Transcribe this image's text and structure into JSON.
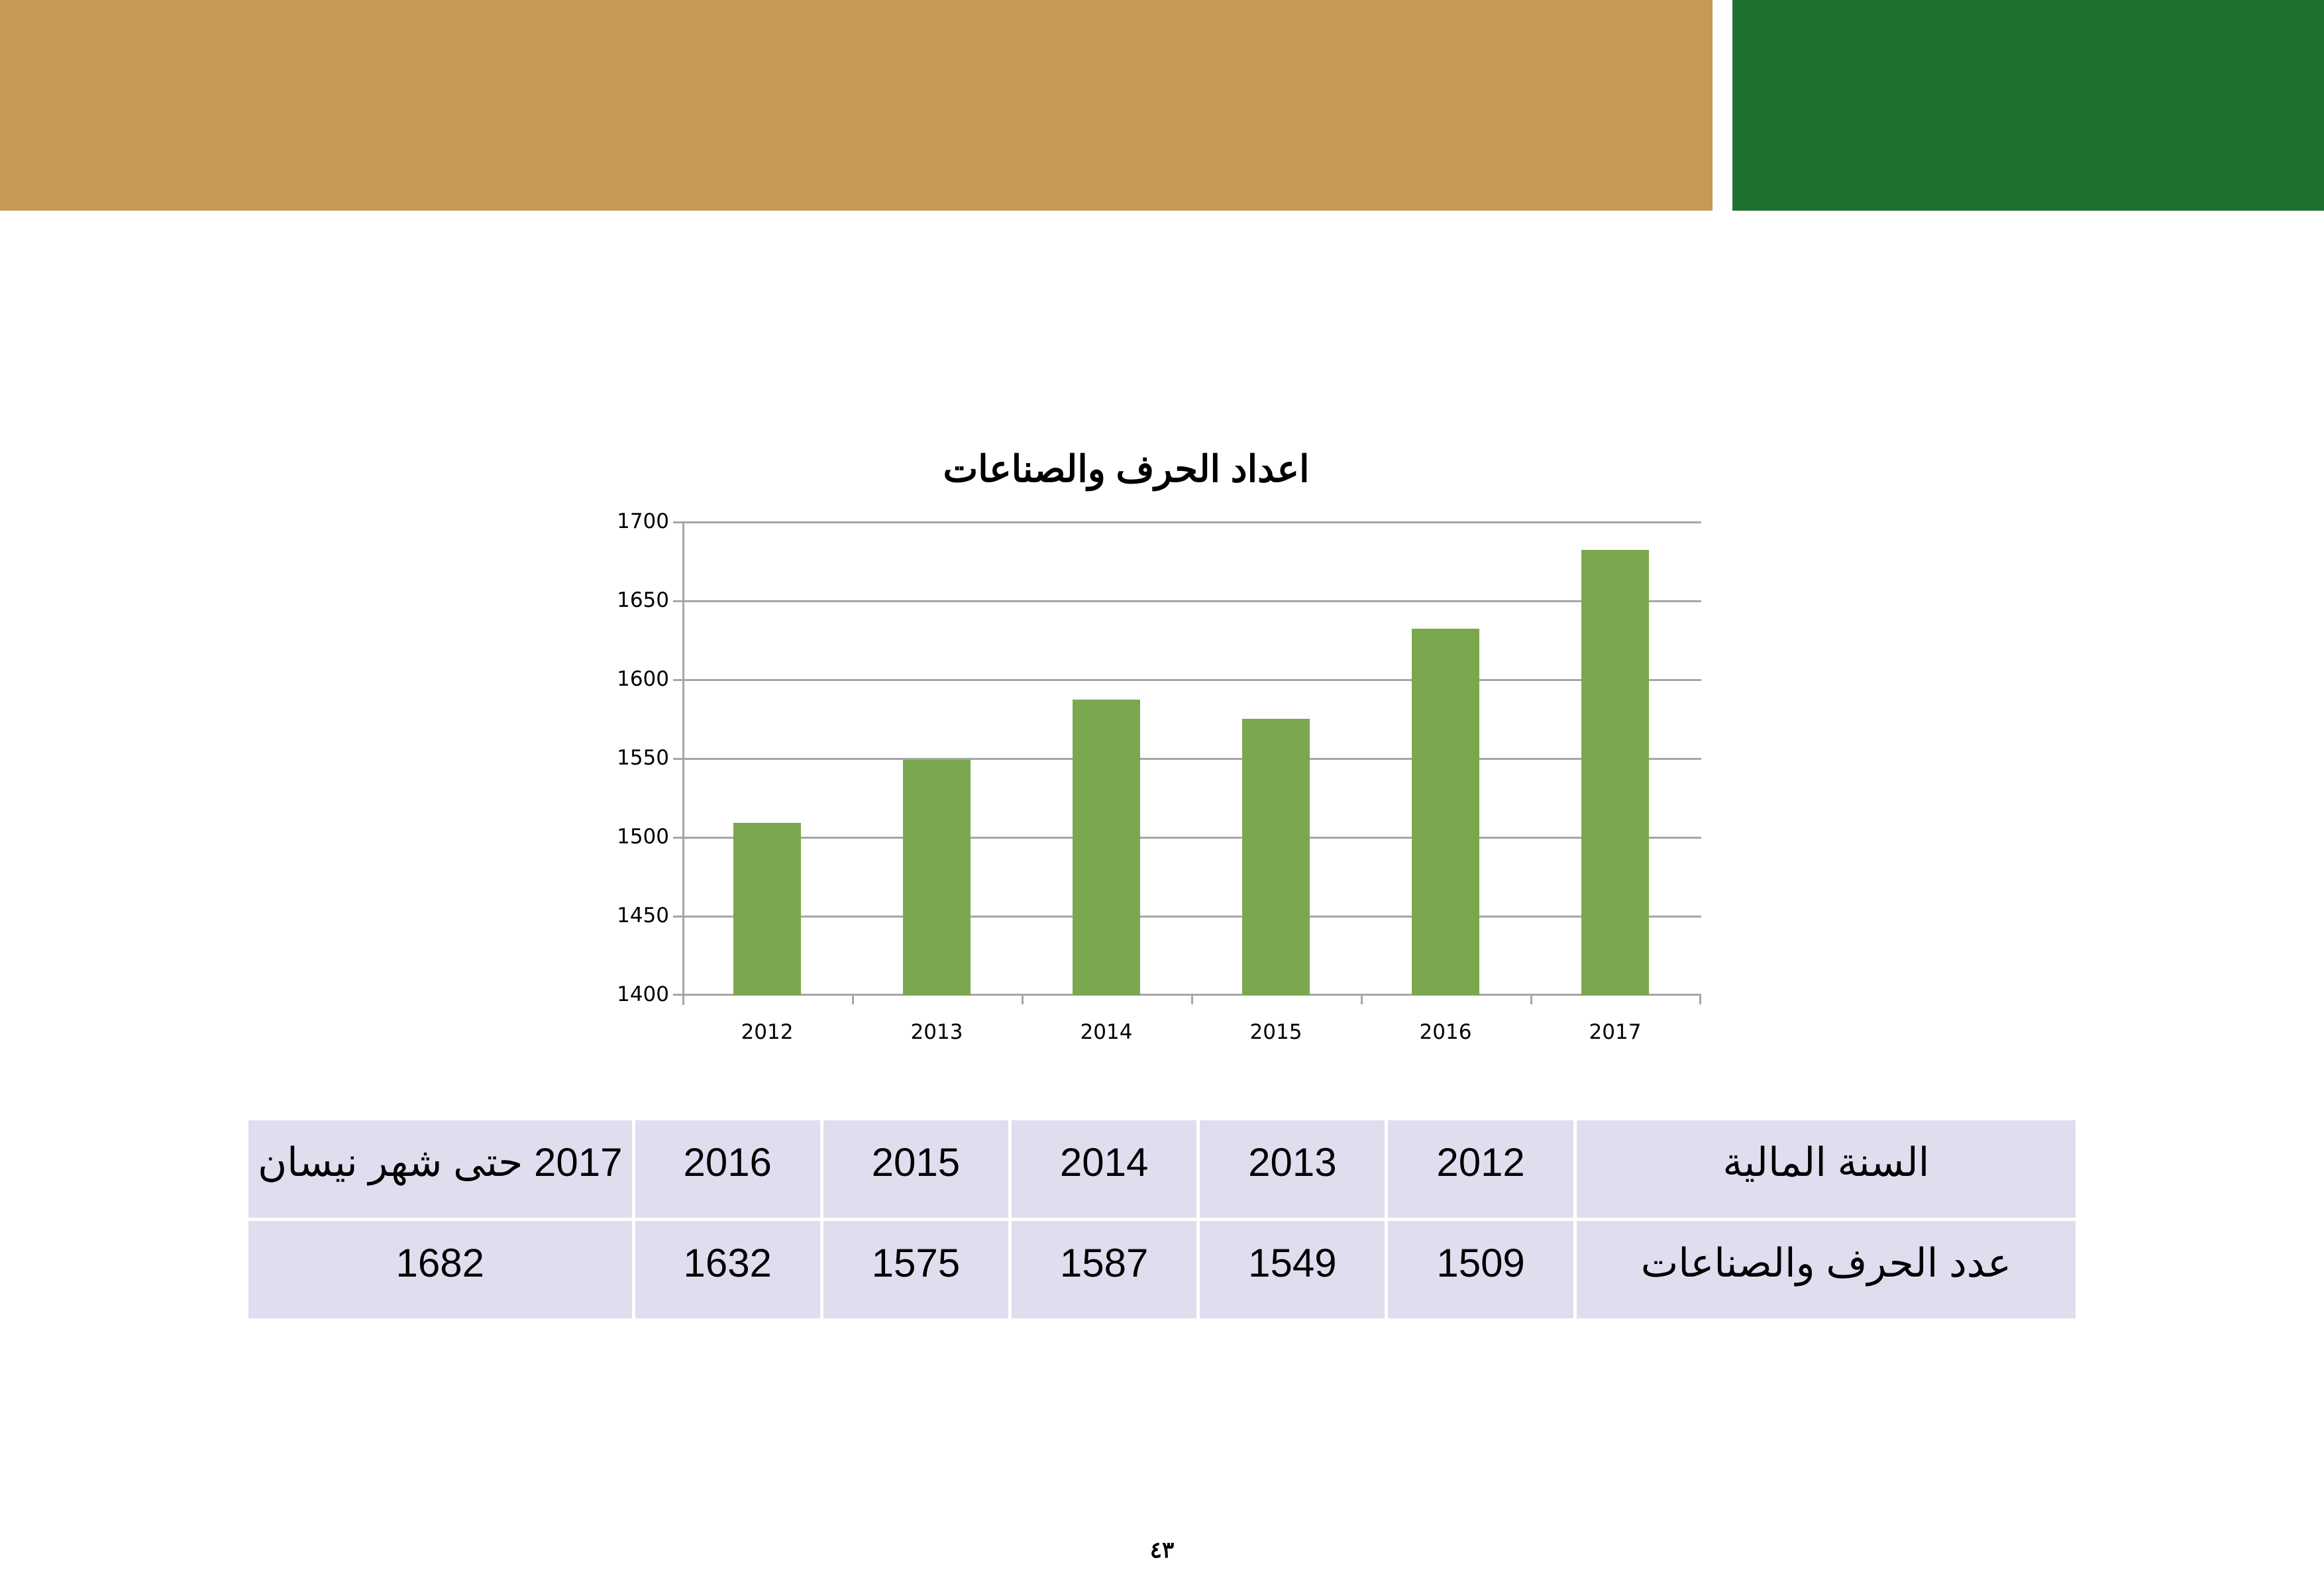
{
  "header": {
    "gold_color": "#c49a54",
    "green_color": "#1e702e"
  },
  "chart": {
    "title": "اعداد الحرف والصناعات",
    "y_ticks": [
      "1700",
      "1650",
      "1600",
      "1550",
      "1500",
      "1450",
      "1400"
    ],
    "x_labels": [
      "2012",
      "2013",
      "2014",
      "2015",
      "2016",
      "2017"
    ],
    "bar_color": "#7ba84f"
  },
  "chart_data": {
    "type": "bar",
    "title": "اعداد الحرف والصناعات",
    "categories": [
      "2012",
      "2013",
      "2014",
      "2015",
      "2016",
      "2017"
    ],
    "values": [
      1509,
      1549,
      1587,
      1575,
      1632,
      1682
    ],
    "xlabel": "",
    "ylabel": "",
    "ylim": [
      1400,
      1700
    ],
    "y_tick_step": 50,
    "grid": true,
    "legend": null,
    "colors": [
      "#7ba84f"
    ]
  },
  "table": {
    "header_row": {
      "label": "السنة المالية",
      "cells": [
        "2012",
        "2013",
        "2014",
        "2015",
        "2016",
        "2017 حتى شهر نيسان"
      ]
    },
    "value_row": {
      "label": "عدد الحرف والصناعات",
      "cells": [
        "1509",
        "1549",
        "1587",
        "1575",
        "1632",
        "1682"
      ]
    }
  },
  "page": {
    "number": "٤٣"
  }
}
